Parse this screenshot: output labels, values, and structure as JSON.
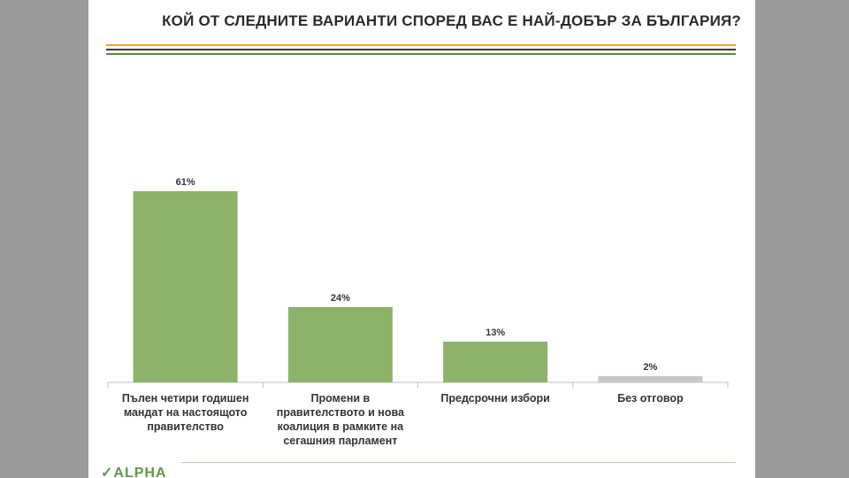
{
  "title": "КОЙ ОТ СЛЕДНИТЕ ВАРИАНТИ СПОРЕД ВАС Е НАЙ-ДОБЪР ЗА БЪЛГАРИЯ?",
  "logo_text": "ALPHA",
  "colors": {
    "bar": "#8db36a",
    "bar_no_answer": "#c8c8c8",
    "rule_orange": "#e8a23a",
    "rule_dark": "#3a3a3a",
    "rule_green": "#5d8a3c"
  },
  "chart_data": {
    "type": "bar",
    "title": "КОЙ ОТ СЛЕДНИТЕ ВАРИАНТИ СПОРЕД ВАС Е НАЙ-ДОБЪР ЗА БЪЛГАРИЯ?",
    "categories": [
      "Пълен четири годишен мандат на настоящото правителство",
      "Промени в правителството и нова коалиция в рамките на сегашния парламент",
      "Предсрочни избори",
      "Без отговор"
    ],
    "values": [
      61,
      24,
      13,
      2
    ],
    "value_labels": [
      "61%",
      "24%",
      "13%",
      "2%"
    ],
    "unit": "%",
    "ylim": [
      0,
      70
    ],
    "grid": false,
    "legend": "none"
  }
}
